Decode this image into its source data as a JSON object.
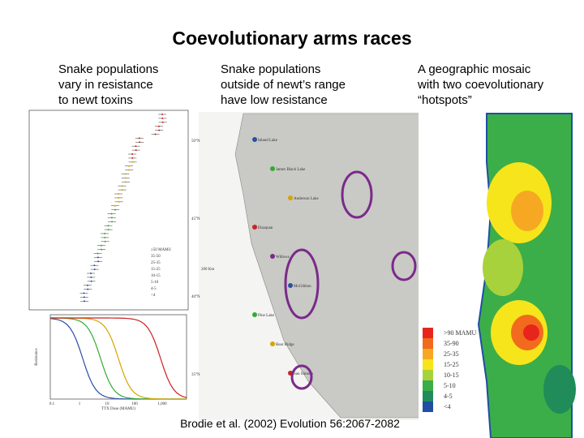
{
  "title": "Coevolutionary arms races",
  "columns": [
    {
      "caption": [
        "Snake populations",
        "vary in resistance",
        "to newt toxins"
      ]
    },
    {
      "caption": [
        "Snake populations",
        "outside of newt’s range",
        "have low resistance"
      ]
    },
    {
      "caption": [
        "A geographic mosaic",
        "with two coevolutionary",
        "“hotspots”"
      ]
    }
  ],
  "resistance_panel": {
    "legend": [
      "≥50 MAMU",
      "35-50",
      "25-35",
      "15-25",
      "10-15",
      "5-10",
      "4-5",
      "<4"
    ],
    "y_label": "Resistance",
    "x_label": "TTX Dose (MAMU)",
    "x_ticks": [
      "0.1",
      "1",
      "10",
      "100",
      "1,000"
    ]
  },
  "range_map": {
    "latitudes": [
      "50°N",
      "45°N",
      "40°N",
      "35°N"
    ],
    "scale": "200 Km",
    "places": [
      "Inland Lake",
      "James Black Lake",
      "Anderson Lake",
      "Elsaquan",
      "Willows",
      "McGibbon",
      "Pine Lake",
      "Bear Ridge",
      "San Simeon"
    ]
  },
  "mosaic_map": {
    "legend": [
      ">90 MAMU",
      "35-90",
      "25-35",
      "15-25",
      "10-15",
      "5-10",
      "4-5",
      "<4"
    ]
  },
  "citation": "Brodie et al. (2002) Evolution 56:2067-2082"
}
